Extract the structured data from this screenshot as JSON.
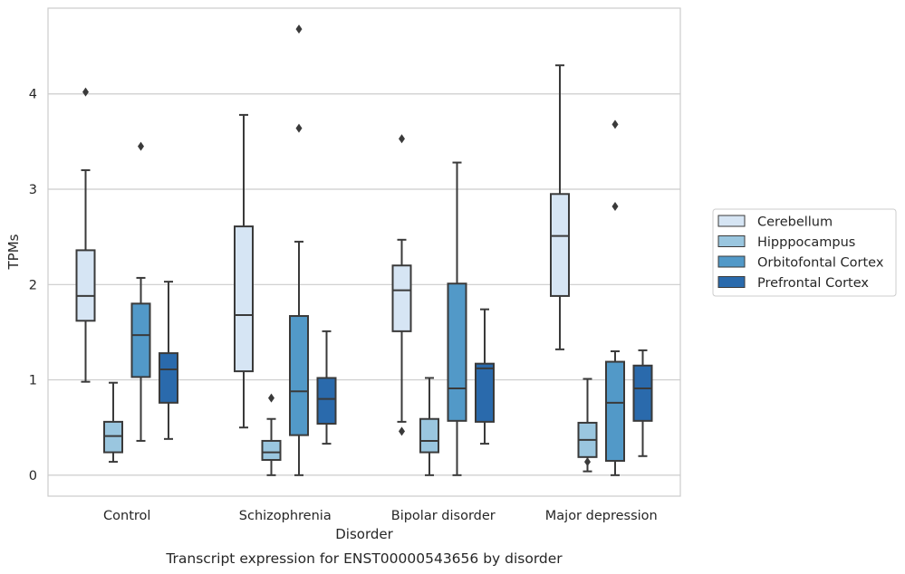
{
  "chart_data": {
    "type": "boxplot",
    "title": "Transcript expression for ENST00000543656 by disorder",
    "xlabel": "Disorder",
    "ylabel": "TPMs",
    "ylim": [
      -0.22,
      4.9
    ],
    "yticks": [
      0,
      1,
      2,
      3,
      4
    ],
    "grid": "horizontal",
    "legend_position": "right",
    "categories": [
      "Control",
      "Schizophrenia",
      "Bipolar disorder",
      "Major depression"
    ],
    "series": [
      {
        "name": "Cerebellum",
        "color": "#d6e5f4",
        "boxes": [
          {
            "whislo": 0.98,
            "q1": 1.62,
            "med": 1.88,
            "q3": 2.36,
            "whishi": 3.2,
            "fliers": [
              4.02
            ]
          },
          {
            "whislo": 0.5,
            "q1": 1.09,
            "med": 1.68,
            "q3": 2.61,
            "whishi": 3.78,
            "fliers": []
          },
          {
            "whislo": 0.56,
            "q1": 1.51,
            "med": 1.94,
            "q3": 2.2,
            "whishi": 2.47,
            "fliers": [
              0.46,
              3.53
            ]
          },
          {
            "whislo": 1.32,
            "q1": 1.88,
            "med": 2.51,
            "q3": 2.95,
            "whishi": 4.3,
            "fliers": []
          }
        ]
      },
      {
        "name": "Hipppocampus",
        "color": "#9ac6df",
        "boxes": [
          {
            "whislo": 0.14,
            "q1": 0.24,
            "med": 0.41,
            "q3": 0.56,
            "whishi": 0.97,
            "fliers": []
          },
          {
            "whislo": 0.0,
            "q1": 0.16,
            "med": 0.24,
            "q3": 0.36,
            "whishi": 0.59,
            "fliers": [
              0.81
            ]
          },
          {
            "whislo": 0.0,
            "q1": 0.24,
            "med": 0.36,
            "q3": 0.59,
            "whishi": 1.02,
            "fliers": []
          },
          {
            "whislo": 0.04,
            "q1": 0.19,
            "med": 0.37,
            "q3": 0.55,
            "whishi": 1.01,
            "fliers": [
              0.14
            ]
          }
        ]
      },
      {
        "name": "Orbitofontal Cortex",
        "color": "#5299c8",
        "boxes": [
          {
            "whislo": 0.36,
            "q1": 1.03,
            "med": 1.47,
            "q3": 1.8,
            "whishi": 2.07,
            "fliers": [
              3.45
            ]
          },
          {
            "whislo": 0.0,
            "q1": 0.42,
            "med": 0.88,
            "q3": 1.67,
            "whishi": 2.45,
            "fliers": [
              3.64,
              4.68
            ]
          },
          {
            "whislo": 0.0,
            "q1": 0.57,
            "med": 0.91,
            "q3": 2.01,
            "whishi": 3.28,
            "fliers": []
          },
          {
            "whislo": 0.0,
            "q1": 0.15,
            "med": 0.76,
            "q3": 1.19,
            "whishi": 1.3,
            "fliers": [
              2.82,
              3.68
            ]
          }
        ]
      },
      {
        "name": "Prefrontal Cortex",
        "color": "#2a6aac",
        "boxes": [
          {
            "whislo": 0.38,
            "q1": 0.76,
            "med": 1.11,
            "q3": 1.28,
            "whishi": 2.03,
            "fliers": []
          },
          {
            "whislo": 0.33,
            "q1": 0.54,
            "med": 0.8,
            "q3": 1.02,
            "whishi": 1.51,
            "fliers": []
          },
          {
            "whislo": 0.33,
            "q1": 0.56,
            "med": 1.12,
            "q3": 1.17,
            "whishi": 1.74,
            "fliers": []
          },
          {
            "whislo": 0.2,
            "q1": 0.57,
            "med": 0.91,
            "q3": 1.15,
            "whishi": 1.31,
            "fliers": []
          }
        ]
      }
    ]
  }
}
